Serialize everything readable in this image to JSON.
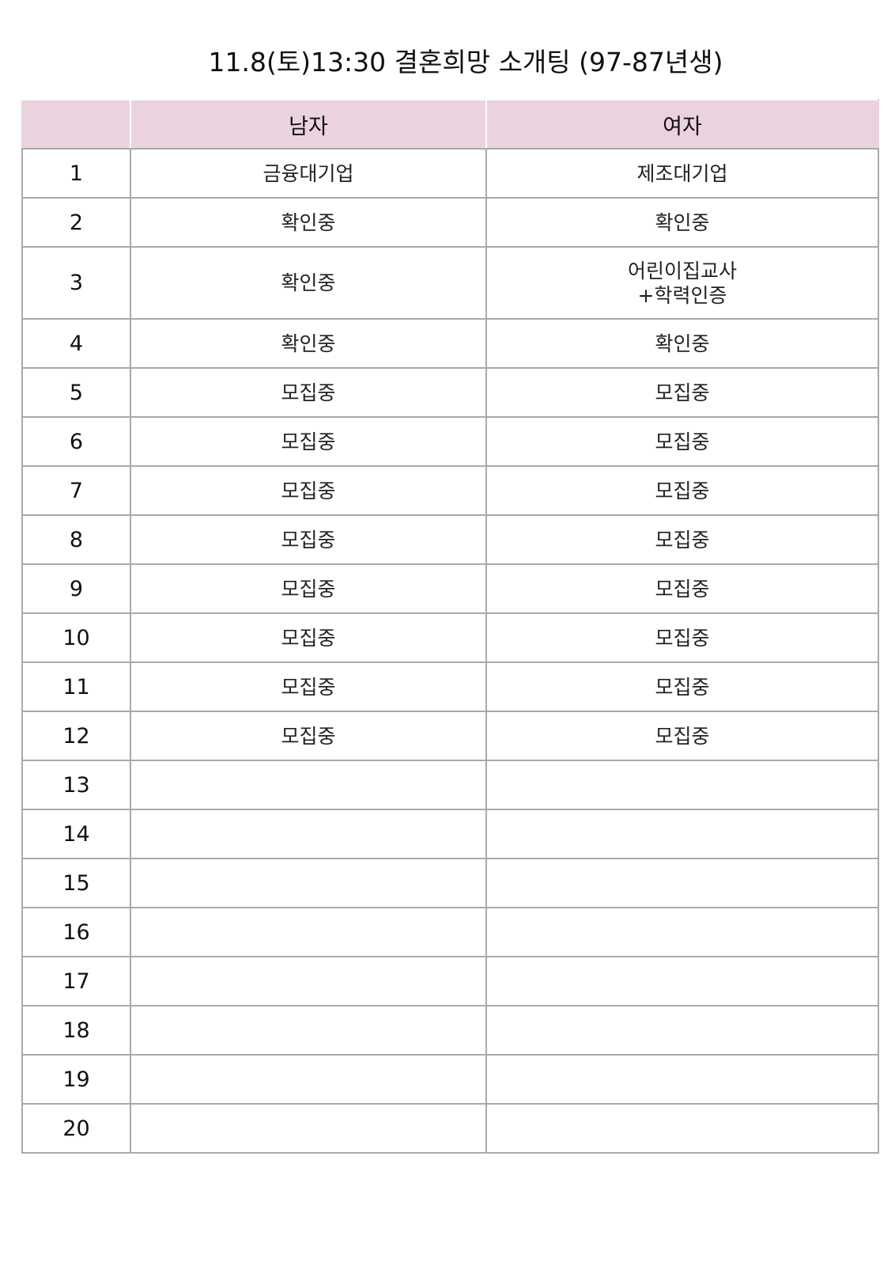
{
  "title": "11.8(토)13:30 결혼희망 소개팅 (97-87년생)",
  "headers": {
    "number": "",
    "male": "남자",
    "female": "여자"
  },
  "rows": [
    {
      "num": "1",
      "male": "금융대기업",
      "female": "제조대기업"
    },
    {
      "num": "2",
      "male": "확인중",
      "female": "확인중"
    },
    {
      "num": "3",
      "male": "확인중",
      "female": "어린이집교사\n+학력인증"
    },
    {
      "num": "4",
      "male": "확인중",
      "female": "확인중"
    },
    {
      "num": "5",
      "male": "모집중",
      "female": "모집중"
    },
    {
      "num": "6",
      "male": "모집중",
      "female": "모집중"
    },
    {
      "num": "7",
      "male": "모집중",
      "female": "모집중"
    },
    {
      "num": "8",
      "male": "모집중",
      "female": "모집중"
    },
    {
      "num": "9",
      "male": "모집중",
      "female": "모집중"
    },
    {
      "num": "10",
      "male": "모집중",
      "female": "모집중"
    },
    {
      "num": "11",
      "male": "모집중",
      "female": "모집중"
    },
    {
      "num": "12",
      "male": "모집중",
      "female": "모집중"
    },
    {
      "num": "13",
      "male": "",
      "female": ""
    },
    {
      "num": "14",
      "male": "",
      "female": ""
    },
    {
      "num": "15",
      "male": "",
      "female": ""
    },
    {
      "num": "16",
      "male": "",
      "female": ""
    },
    {
      "num": "17",
      "male": "",
      "female": ""
    },
    {
      "num": "18",
      "male": "",
      "female": ""
    },
    {
      "num": "19",
      "male": "",
      "female": ""
    },
    {
      "num": "20",
      "male": "",
      "female": ""
    }
  ],
  "colors": {
    "header_background": "#ead2de",
    "grid_line": "#a9a9a9"
  }
}
